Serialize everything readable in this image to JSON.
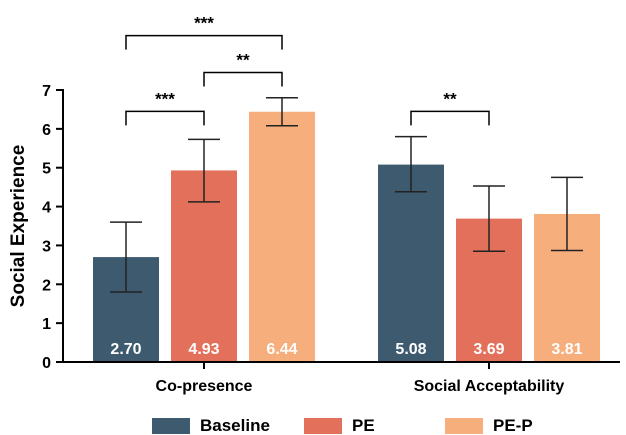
{
  "chart_data": {
    "type": "bar",
    "ylabel": "Social Experience",
    "xlabel": "",
    "ylim": [
      0,
      7
    ],
    "yticks": [
      0,
      1,
      2,
      3,
      4,
      5,
      6,
      7
    ],
    "categories": [
      "Co-presence",
      "Social Acceptability"
    ],
    "series": [
      {
        "name": "Baseline",
        "color": "#3d5a6e",
        "values": [
          2.7,
          5.08
        ],
        "labels": [
          "2.70",
          "5.08"
        ],
        "error_low": [
          1.8,
          4.38
        ],
        "error_high": [
          3.6,
          5.8
        ]
      },
      {
        "name": "PE",
        "color": "#e3705a",
        "values": [
          4.93,
          3.69
        ],
        "labels": [
          "4.93",
          "3.69"
        ],
        "error_low": [
          4.12,
          2.85
        ],
        "error_high": [
          5.73,
          4.53
        ]
      },
      {
        "name": "PE-P",
        "color": "#f5ae7c",
        "values": [
          6.44,
          3.81
        ],
        "labels": [
          "6.44",
          "3.81"
        ],
        "error_low": [
          6.08,
          2.87
        ],
        "error_high": [
          6.8,
          4.75
        ]
      }
    ],
    "significance": [
      {
        "category": 0,
        "from_series": 0,
        "to_series": 2,
        "label": "***",
        "level": 8.4
      },
      {
        "category": 0,
        "from_series": 1,
        "to_series": 2,
        "label": "**",
        "level": 7.45
      },
      {
        "category": 0,
        "from_series": 0,
        "to_series": 1,
        "label": "***",
        "level": 6.45
      },
      {
        "category": 1,
        "from_series": 0,
        "to_series": 1,
        "label": "**",
        "level": 6.45
      }
    ],
    "legend_position": "bottom",
    "grid": false
  }
}
